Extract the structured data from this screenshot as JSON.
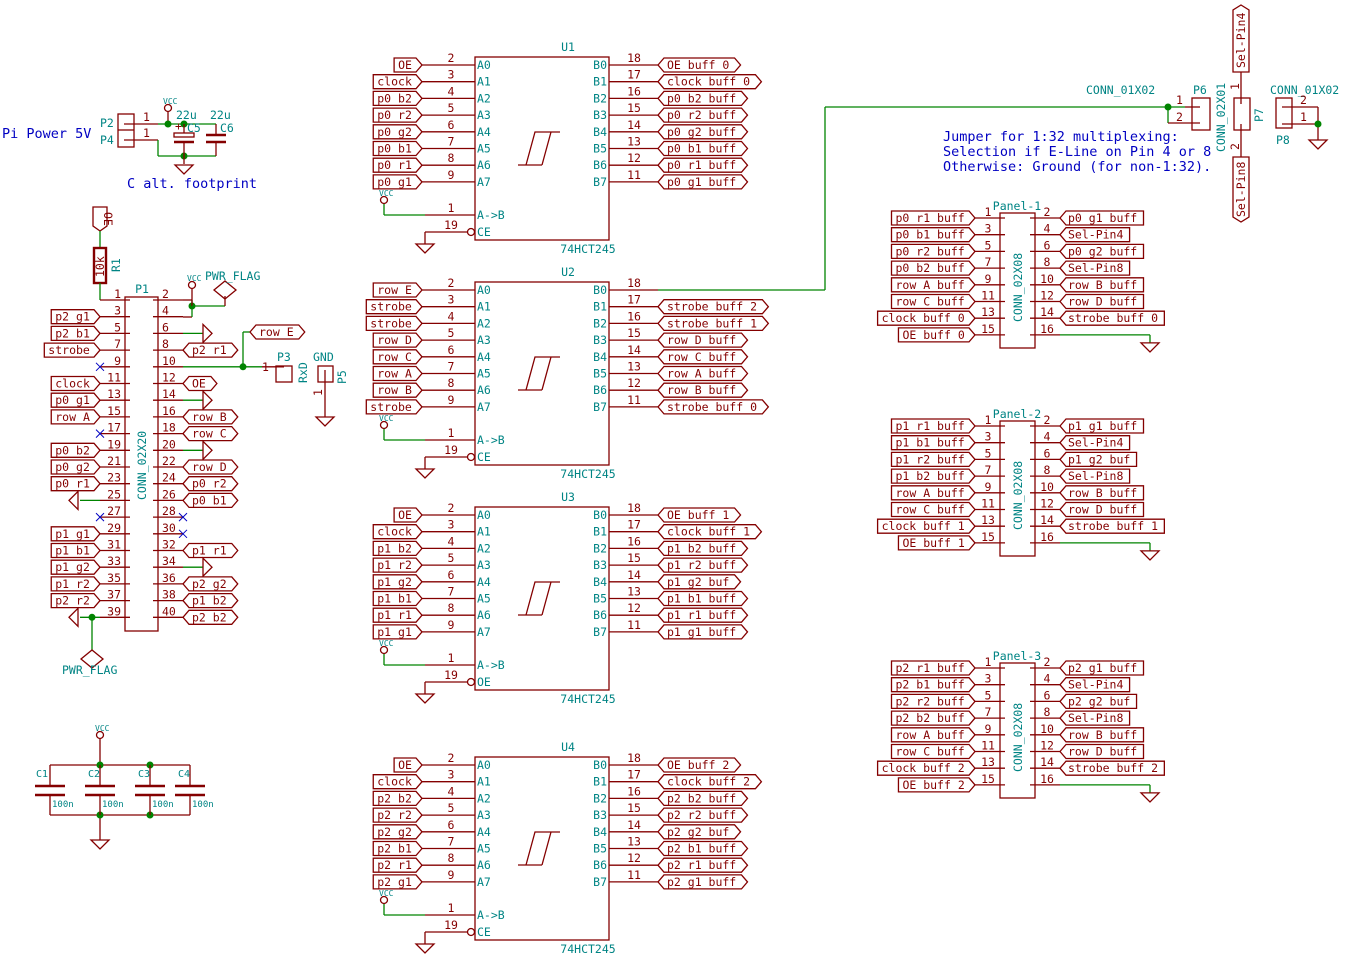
{
  "colors": {
    "component": "#840000",
    "field": "#008484",
    "wire": "#008400",
    "note": "#0000c2"
  },
  "power_section": {
    "title": "Pi Power 5V",
    "connectors": [
      "P2",
      "P4"
    ],
    "pin": "1",
    "vcc": "VCC",
    "caps": [
      {
        "ref": "C5",
        "value": "22u"
      },
      {
        "ref": "C6",
        "value": "22u"
      }
    ],
    "cap_plus": "+",
    "note": "C alt. footprint"
  },
  "r1": {
    "ref": "R1",
    "value": "10k",
    "label": "OE"
  },
  "pwr_flags": [
    "PWR_FLAG",
    "PWR_FLAG"
  ],
  "p1": {
    "ref": "P1",
    "value": "CONN_02X20",
    "left_labels": [
      null,
      "p2_g1",
      "p2_b1",
      "strobe",
      null,
      "clock",
      "p0_g1",
      "row_A",
      null,
      "p0_b2",
      "p0_g2",
      "p0_r1",
      null,
      null,
      "p1_g1",
      "p1_b1",
      "p1_g2",
      "p1_r2",
      "p2_r2",
      null
    ],
    "right_labels": [
      null,
      null,
      null,
      "p2_r1",
      null,
      "OE",
      null,
      "row_B",
      "row_C",
      null,
      "row_D",
      "p0_r2",
      "p0_b1",
      null,
      null,
      "p1_r1",
      null,
      "p2_g2",
      "p1_b2",
      "p2_b2"
    ],
    "no_connect_pins": [
      9,
      17,
      27,
      28,
      30
    ],
    "ground_pins": [
      6,
      14,
      20,
      25,
      34,
      39
    ]
  },
  "p3": {
    "ref": "P3",
    "value": "RxD",
    "pin": "1",
    "label": "row_E"
  },
  "p5": {
    "ref": "P5",
    "value": "GND",
    "pin": "1"
  },
  "chips": [
    {
      "ref": "U1",
      "value": "74HCT245",
      "inputs": [
        "OE",
        "clock",
        "p0_b2",
        "p0_r2",
        "p0_g2",
        "p0_b1",
        "p0_r1",
        "p0_g1"
      ],
      "outputs": [
        "OE_buff_0",
        "clock_buff_0",
        "p0_b2_buff",
        "p0_r2_buff",
        "p0_g2_buff",
        "p0_b1_buff",
        "p0_r1_buff",
        "p0_g1_buff"
      ]
    },
    {
      "ref": "U2",
      "value": "74HCT245",
      "inputs": [
        "row_E",
        "strobe",
        "strobe",
        "row_D",
        "row_C",
        "row_A",
        "row_B",
        "strobe"
      ],
      "outputs": [
        null,
        "strobe_buff_2",
        "strobe_buff_1",
        "row_D_buff",
        "row_C_buff",
        "row_A_buff",
        "row_B_buff",
        "strobe_buff_0"
      ]
    },
    {
      "ref": "U3",
      "value": "74HCT245",
      "inputs": [
        "OE",
        "clock",
        "p1_b2",
        "p1_r2",
        "p1_g2",
        "p1_b1",
        "p1_r1",
        "p1_g1"
      ],
      "outputs": [
        "OE_buff_1",
        "clock_buff_1",
        "p1_b2_buff",
        "p1_r2_buff",
        "p1_g2_buf",
        "p1_b1_buff",
        "p1_r1_buff",
        "p1_g1_buff"
      ]
    },
    {
      "ref": "U4",
      "value": "74HCT245",
      "inputs": [
        "OE",
        "clock",
        "p2_b2",
        "p2_r2",
        "p2_g2",
        "p2_b1",
        "p2_r1",
        "p2_g1"
      ],
      "outputs": [
        "OE_buff_2",
        "clock_buff_2",
        "p2_b2_buff",
        "p2_r2_buff",
        "p2_g2_buf",
        "p2_b1_buff",
        "p2_r1_buff",
        "p2_g1_buff"
      ]
    }
  ],
  "chip_pins": {
    "in_numbers": [
      "2",
      "3",
      "4",
      "5",
      "6",
      "7",
      "8",
      "9"
    ],
    "out_numbers": [
      "18",
      "17",
      "16",
      "15",
      "14",
      "13",
      "12",
      "11"
    ],
    "in_names": [
      "A0",
      "A1",
      "A2",
      "A3",
      "A4",
      "A5",
      "A6",
      "A7"
    ],
    "out_names": [
      "B0",
      "B1",
      "B2",
      "B3",
      "B4",
      "B5",
      "B6",
      "B7"
    ],
    "dir_name": "A->B",
    "dir_number": "1",
    "ce_name": "CE",
    "ce_number": "19",
    "u3_ce_name": "OE"
  },
  "panels": [
    {
      "ref": "Panel-1",
      "value": "CONN_02X08",
      "left": [
        "p0_r1_buff",
        "p0_b1_buff",
        "p0_r2_buff",
        "p0_b2_buff",
        "row_A_buff",
        "row_C_buff",
        "clock_buff_0",
        "OE_buff_0"
      ],
      "right": [
        "p0_g1_buff",
        "Sel-Pin4",
        "p0_g2_buff",
        "Sel-Pin8",
        "row_B_buff",
        "row_D_buff",
        "strobe_buff_0",
        null
      ]
    },
    {
      "ref": "Panel-2",
      "value": "CONN_02X08",
      "left": [
        "p1_r1_buff",
        "p1_b1_buff",
        "p1_r2_buff",
        "p1_b2_buff",
        "row_A_buff",
        "row_C_buff",
        "clock_buff_1",
        "OE_buff_1"
      ],
      "right": [
        "p1_g1_buff",
        "Sel-Pin4",
        "p1_g2_buf",
        "Sel-Pin8",
        "row_B_buff",
        "row_D_buff",
        "strobe_buff_1",
        null
      ]
    },
    {
      "ref": "Panel-3",
      "value": "CONN_02X08",
      "left": [
        "p2_r1_buff",
        "p2_b1_buff",
        "p2_r2_buff",
        "p2_b2_buff",
        "row_A_buff",
        "row_C_buff",
        "clock_buff_2",
        "OE_buff_2"
      ],
      "right": [
        "p2_g1_buff",
        "Sel-Pin4",
        "p2_g2_buf",
        "Sel-Pin8",
        "row_B_buff",
        "row_D_buff",
        "strobe_buff_2",
        null
      ]
    }
  ],
  "jumpers": {
    "p6": {
      "ref": "P6",
      "value": "CONN_01X02",
      "pins": [
        "1",
        "2"
      ]
    },
    "p7": {
      "ref": "P7",
      "value": "CONN_02X01",
      "pins": [
        "1",
        "2"
      ],
      "top_label": "Sel-Pin4",
      "bottom_label": "Sel-Pin8"
    },
    "p8": {
      "ref": "P8",
      "value": "CONN_01X02",
      "pins": [
        "2",
        "1"
      ]
    },
    "note": [
      "Jumper for 1:32 multiplexing:",
      "Selection if E-Line on Pin 4 or 8",
      "Otherwise: Ground (for non-1:32)."
    ]
  },
  "decoupling": [
    {
      "ref": "C1",
      "value": "100n"
    },
    {
      "ref": "C2",
      "value": "100n"
    },
    {
      "ref": "C3",
      "value": "100n"
    },
    {
      "ref": "C4",
      "value": "100n"
    }
  ],
  "vcc": "VCC"
}
